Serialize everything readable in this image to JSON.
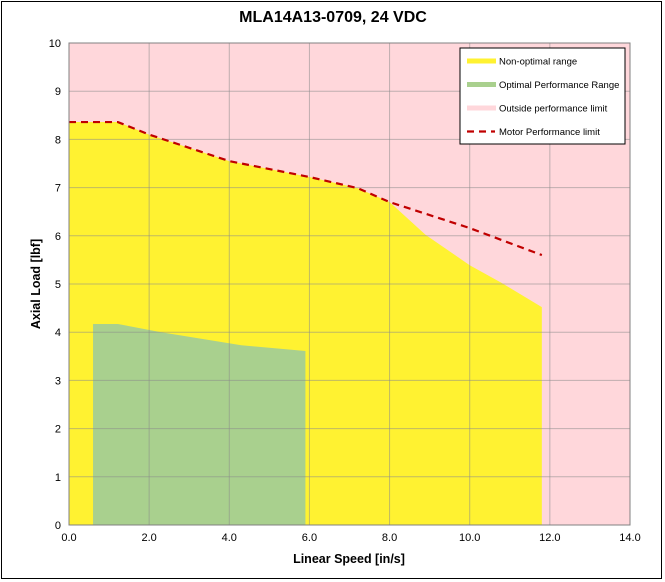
{
  "chart_data": {
    "type": "area",
    "title": "MLA14A13-0709, 24 VDC",
    "xlabel": "Linear Speed [in/s]",
    "ylabel": "Axial Load [lbf]",
    "xlim": [
      0,
      14
    ],
    "ylim": [
      0,
      10
    ],
    "xticks": [
      "0.0",
      "2.0",
      "4.0",
      "6.0",
      "8.0",
      "10.0",
      "12.0",
      "14.0"
    ],
    "yticks": [
      "0",
      "1",
      "2",
      "3",
      "4",
      "5",
      "6",
      "7",
      "8",
      "9",
      "10"
    ],
    "grid": true,
    "legend_position": "top-right",
    "series": [
      {
        "name": "Outside performance limit",
        "kind": "background",
        "color": "#ffd7db"
      },
      {
        "name": "Non-optimal range",
        "kind": "area",
        "color": "#fff231",
        "points": [
          [
            0,
            8.36
          ],
          [
            1.22,
            8.36
          ],
          [
            2.0,
            8.1
          ],
          [
            4.0,
            7.55
          ],
          [
            6.0,
            7.22
          ],
          [
            7.2,
            6.99
          ],
          [
            8.0,
            6.7
          ],
          [
            8.9,
            6.02
          ],
          [
            10.0,
            5.39
          ],
          [
            10.8,
            5.02
          ],
          [
            11.8,
            4.52
          ]
        ]
      },
      {
        "name": "Optimal Performance Range",
        "kind": "area",
        "color": "#a9d08e",
        "points": [
          [
            0.6,
            4.17
          ],
          [
            1.22,
            4.17
          ],
          [
            2.3,
            4.0
          ],
          [
            4.3,
            3.73
          ],
          [
            5.9,
            3.61
          ]
        ]
      },
      {
        "name": "Motor Performance limit",
        "kind": "dashed-line",
        "color": "#c00000",
        "points": [
          [
            0,
            8.36
          ],
          [
            1.22,
            8.36
          ],
          [
            2.0,
            8.1
          ],
          [
            4.0,
            7.55
          ],
          [
            6.0,
            7.22
          ],
          [
            7.2,
            6.99
          ],
          [
            8.0,
            6.7
          ],
          [
            10.0,
            6.16
          ],
          [
            11.8,
            5.6
          ]
        ]
      }
    ]
  }
}
